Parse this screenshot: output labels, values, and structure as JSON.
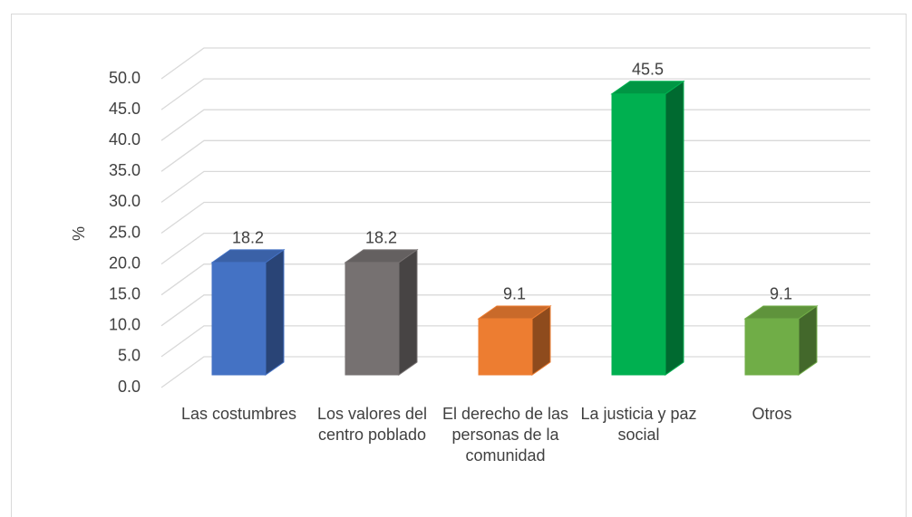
{
  "chart_data": {
    "type": "bar3d",
    "y_label": "%",
    "categories": [
      "Las costumbres",
      "Los valores del centro poblado",
      "El derecho de las personas de la comunidad",
      "La justicia y paz social",
      "Otros"
    ],
    "values": [
      18.2,
      18.2,
      9.1,
      45.5,
      9.1
    ],
    "colors": [
      "#4472c4",
      "#767171",
      "#ed7d31",
      "#00b050",
      "#70ad47"
    ],
    "ylim": [
      0,
      50
    ],
    "yticks": [
      {
        "value": 0,
        "label": "0.0"
      },
      {
        "value": 5,
        "label": "5.0"
      },
      {
        "value": 10,
        "label": "10.0"
      },
      {
        "value": 15,
        "label": "15.0"
      },
      {
        "value": 20,
        "label": "20.0"
      },
      {
        "value": 25,
        "label": "25.0"
      },
      {
        "value": 30,
        "label": "30.0"
      },
      {
        "value": 35,
        "label": "35.0"
      },
      {
        "value": 40,
        "label": "40.0"
      },
      {
        "value": 45,
        "label": "45.0"
      },
      {
        "value": 50,
        "label": "50.0"
      }
    ],
    "grid": true
  }
}
